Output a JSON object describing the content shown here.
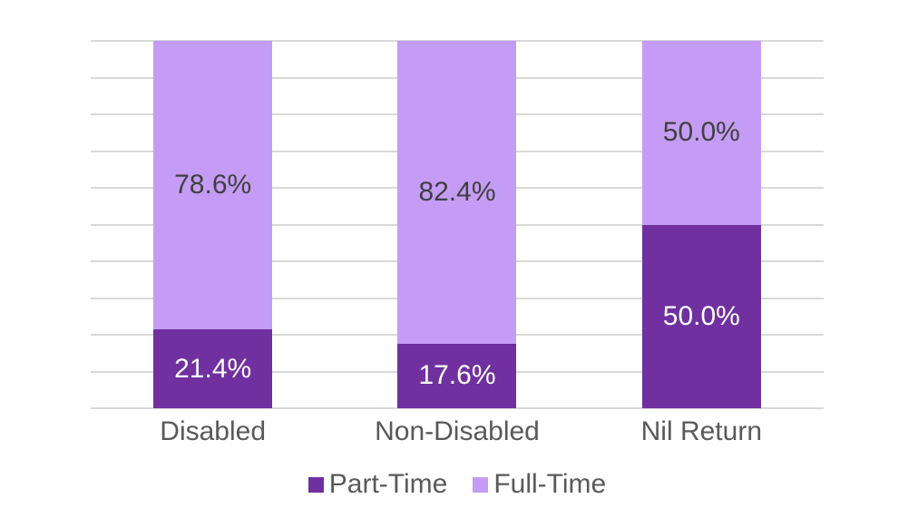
{
  "chart_data": {
    "type": "bar",
    "stacked": true,
    "orientation": "vertical",
    "title": "",
    "xlabel": "",
    "ylabel": "",
    "categories": [
      "Disabled",
      "Non-Disabled",
      "Nil Return"
    ],
    "series": [
      {
        "name": "Part-Time",
        "values": [
          21.4,
          17.6,
          50.0
        ],
        "labels": [
          "21.4%",
          "17.6%",
          "50.0%"
        ],
        "color": "#7030A0",
        "label_color": "#FFFFFF"
      },
      {
        "name": "Full-Time",
        "values": [
          78.6,
          82.4,
          50.0
        ],
        "labels": [
          "78.6%",
          "82.4%",
          "50.0%"
        ],
        "color": "#C59CF5",
        "label_color": "#404040"
      }
    ],
    "ylim": [
      0,
      100
    ],
    "grid": {
      "horizontal": true,
      "interval": 10,
      "color": "#D9D9D9"
    },
    "legend": {
      "position": "bottom",
      "entries": [
        "Part-Time",
        "Full-Time"
      ]
    },
    "axis_text_color": "#595959"
  }
}
